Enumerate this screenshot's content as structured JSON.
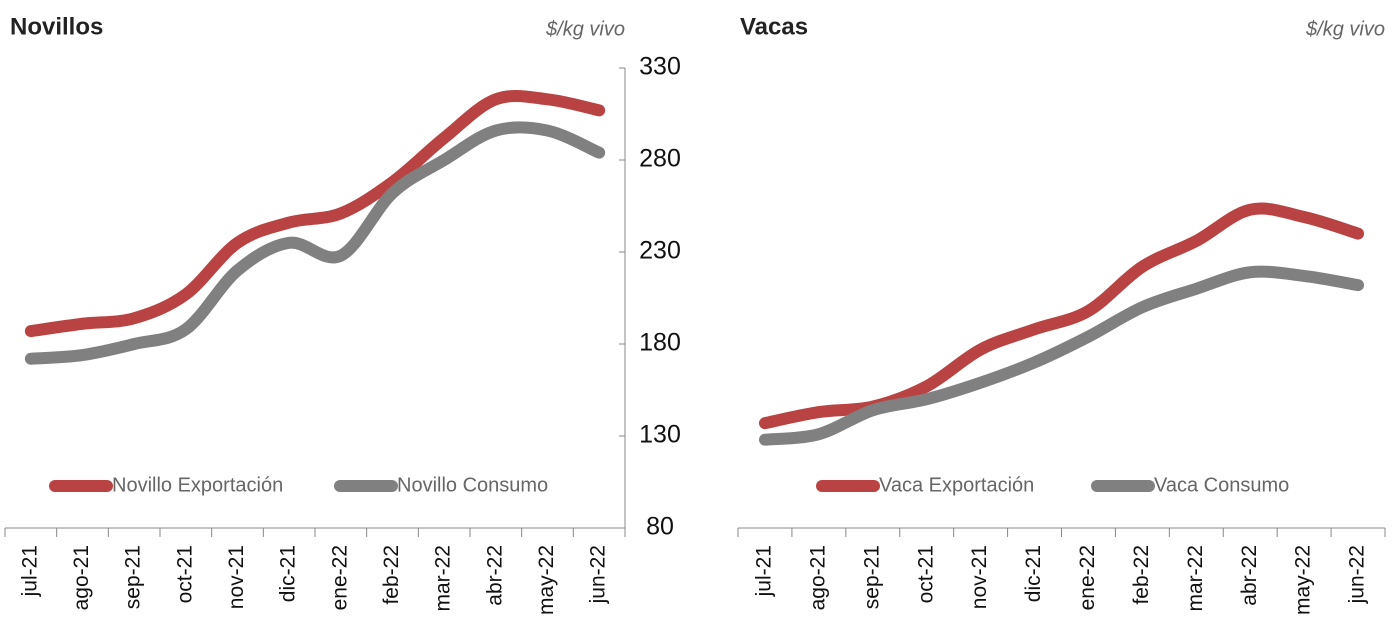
{
  "chart_data": [
    {
      "type": "line",
      "title": "Novillos",
      "subtitle": "$/kg  vivo",
      "categories": [
        "jul-21",
        "ago-21",
        "sep-21",
        "oct-21",
        "nov-21",
        "dic-21",
        "ene-22",
        "feb-22",
        "mar-22",
        "abr-22",
        "may-22",
        "jun-22"
      ],
      "series": [
        {
          "name": "Novillo Exportación",
          "color": "#b94343",
          "values": [
            187,
            191,
            194,
            207,
            235,
            246,
            251,
            268,
            292,
            313,
            313,
            307
          ]
        },
        {
          "name": "Novillo Consumo",
          "color": "#808080",
          "values": [
            172,
            174,
            180,
            188,
            220,
            235,
            228,
            262,
            280,
            296,
            296,
            284
          ]
        }
      ],
      "ylim": [
        80,
        330
      ],
      "yticks": [
        80,
        130,
        180,
        230,
        280,
        330
      ]
    },
    {
      "type": "line",
      "title": "Vacas",
      "subtitle": "$/kg  vivo",
      "categories": [
        "jul-21",
        "ago-21",
        "sep-21",
        "oct-21",
        "nov-21",
        "dic-21",
        "ene-22",
        "feb-22",
        "mar-22",
        "abr-22",
        "may-22",
        "jun-22"
      ],
      "series": [
        {
          "name": "Vaca Exportación",
          "color": "#b94343",
          "values": [
            137,
            143,
            146,
            157,
            177,
            188,
            198,
            222,
            236,
            253,
            249,
            240
          ]
        },
        {
          "name": "Vaca Consumo",
          "color": "#808080",
          "values": [
            128,
            131,
            144,
            150,
            159,
            170,
            184,
            200,
            210,
            219,
            217,
            212
          ]
        }
      ],
      "ylim": [
        80,
        330
      ]
    }
  ]
}
